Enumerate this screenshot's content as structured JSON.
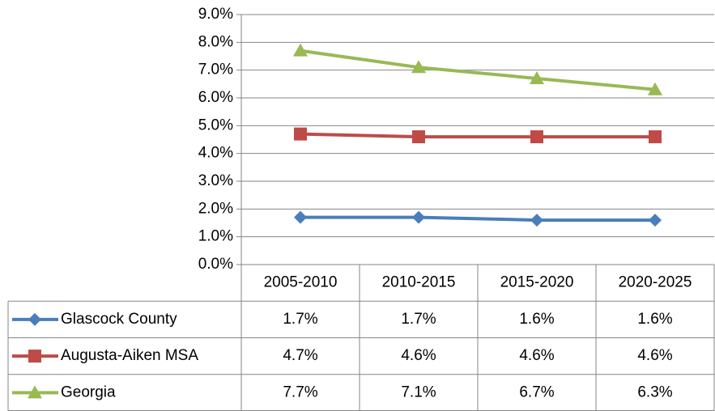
{
  "chart_data": {
    "type": "line",
    "categories": [
      "2005-2010",
      "2010-2015",
      "2015-2020",
      "2020-2025"
    ],
    "series": [
      {
        "name": "Glascock County",
        "color": "#4a7ebb",
        "marker": "diamond",
        "values": [
          1.7,
          1.7,
          1.6,
          1.6
        ],
        "value_labels": [
          "1.7%",
          "1.7%",
          "1.6%",
          "1.6%"
        ]
      },
      {
        "name": "Augusta-Aiken MSA",
        "color": "#be4b48",
        "marker": "square",
        "values": [
          4.7,
          4.6,
          4.6,
          4.6
        ],
        "value_labels": [
          "4.7%",
          "4.6%",
          "4.6%",
          "4.6%"
        ]
      },
      {
        "name": "Georgia",
        "color": "#98b954",
        "marker": "triangle",
        "values": [
          7.7,
          7.1,
          6.7,
          6.3
        ],
        "value_labels": [
          "7.7%",
          "7.1%",
          "6.7%",
          "6.3%"
        ]
      }
    ],
    "ylim": [
      0,
      9
    ],
    "yticks": [
      {
        "value": 0,
        "label": "0.0%"
      },
      {
        "value": 1,
        "label": "1.0%"
      },
      {
        "value": 2,
        "label": "2.0%"
      },
      {
        "value": 3,
        "label": "3.0%"
      },
      {
        "value": 4,
        "label": "4.0%"
      },
      {
        "value": 5,
        "label": "5.0%"
      },
      {
        "value": 6,
        "label": "6.0%"
      },
      {
        "value": 7,
        "label": "7.0%"
      },
      {
        "value": 8,
        "label": "8.0%"
      },
      {
        "value": 9,
        "label": "9.0%"
      }
    ],
    "grid": true
  }
}
